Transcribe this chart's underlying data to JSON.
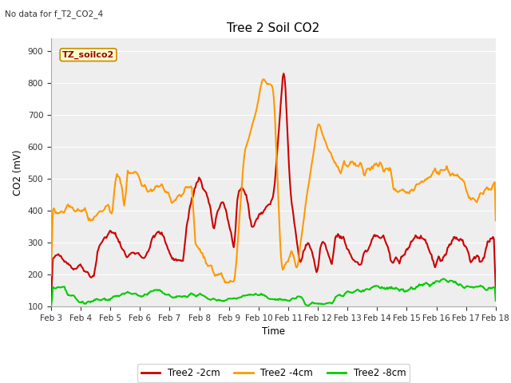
{
  "title": "Tree 2 Soil CO2",
  "subtitle": "No data for f_T2_CO2_4",
  "xlabel": "Time",
  "ylabel": "CO2 (mV)",
  "ylim": [
    100,
    940
  ],
  "yticks": [
    100,
    200,
    300,
    400,
    500,
    600,
    700,
    800,
    900
  ],
  "legend_label": "TZ_soilco2",
  "line_colors": {
    "2cm": "#cc0000",
    "4cm": "#ff9900",
    "8cm": "#00cc00"
  },
  "line_widths": {
    "2cm": 1.5,
    "4cm": 1.5,
    "8cm": 1.5
  },
  "fig_bg_color": "#ffffff",
  "plot_bg_color": "#eeeeee",
  "grid_color": "#ffffff",
  "xtick_labels": [
    "Feb 3",
    "Feb 4",
    "Feb 5",
    "Feb 6",
    "Feb 7",
    "Feb 8",
    "Feb 9",
    "Feb 10",
    "Feb 11",
    "Feb 12",
    "Feb 13",
    "Feb 14",
    "Feb 15",
    "Feb 16",
    "Feb 17",
    "Feb 18"
  ],
  "num_points": 500,
  "legend_entries": [
    "Tree2 -2cm",
    "Tree2 -4cm",
    "Tree2 -8cm"
  ]
}
